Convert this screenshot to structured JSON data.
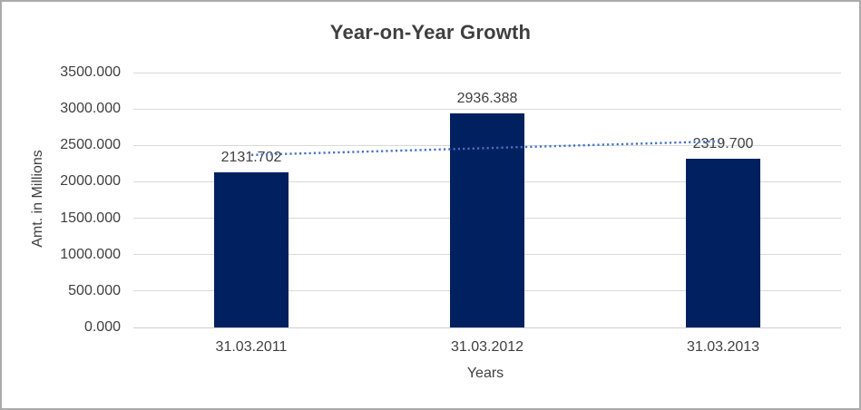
{
  "chart_data": {
    "type": "bar",
    "title": "Year-on-Year Growth",
    "xlabel": "Years",
    "ylabel": "Amt. in Millions",
    "categories": [
      "31.03.2011",
      "31.03.2012",
      "31.03.2013"
    ],
    "values": [
      2131.702,
      2936.388,
      2319.7
    ],
    "data_labels": [
      "2131.702",
      "2936.388",
      "2319.700"
    ],
    "y_ticks": [
      "0.000",
      "500.000",
      "1000.000",
      "1500.000",
      "2000.000",
      "2500.000",
      "3000.000",
      "3500.000"
    ],
    "ylim": [
      0,
      3500
    ],
    "grid": true,
    "legend": false,
    "bar_color": "#002060",
    "trendline": {
      "type": "linear",
      "style": "dotted",
      "color": "#4472C4"
    },
    "colors": {
      "background": "#FFFFFF",
      "border": "#ABABAB",
      "grid": "#D9D9D9",
      "axis": "#CFCFCF",
      "title_text": "#3F3F3F",
      "text": "#404040"
    }
  }
}
